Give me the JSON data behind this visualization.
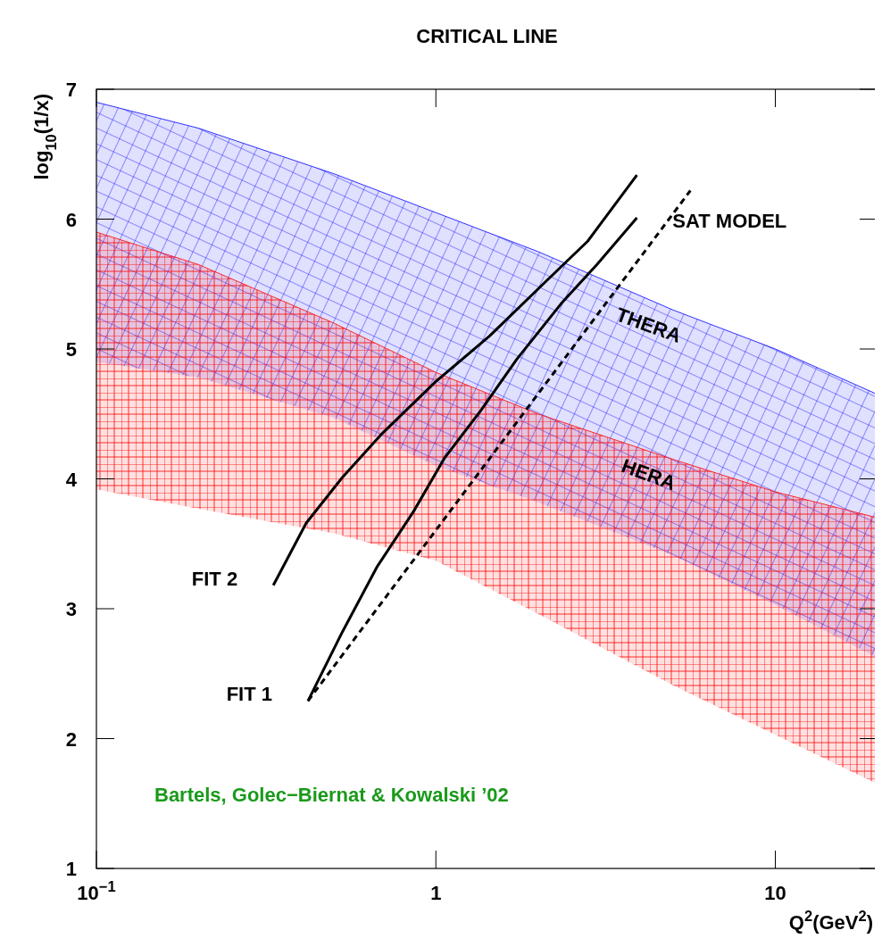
{
  "chart_data": {
    "type": "line",
    "title": "CRITICAL LINE",
    "xlabel": "Q$^{2}$(GeV$^{2}$)",
    "ylabel": "log$_{10}$(1/x)",
    "log": "x",
    "grid": false,
    "xlim": [
      0.1,
      20
    ],
    "ylim": [
      1,
      7
    ],
    "xticks": [
      {
        "value": 0.1,
        "label": "10$^{−1}$"
      },
      1,
      10
    ],
    "yticks": [
      1,
      2,
      3,
      4,
      5,
      6,
      7
    ],
    "series": [
      {
        "name": "THERA",
        "color": "#0000ff",
        "x": [
          0.1,
          0.2,
          0.5,
          1,
          2,
          5,
          10,
          20
        ],
        "values": [
          6.9,
          6.7,
          6.35,
          6.05,
          5.75,
          5.3,
          5.0,
          4.65
        ],
        "upper": [
          6.9,
          6.7,
          6.35,
          6.05,
          5.75,
          5.3,
          5.0,
          4.65
        ],
        "lower": [
          4.9,
          4.78,
          4.47,
          4.1,
          3.82,
          3.41,
          3.03,
          2.62
        ]
      },
      {
        "name": "HERA",
        "color": "#ff0000",
        "x": [
          0.1,
          0.2,
          0.5,
          1,
          2,
          5,
          10,
          20
        ],
        "values": [
          5.9,
          5.65,
          5.2,
          4.82,
          4.5,
          4.15,
          3.9,
          3.7
        ],
        "upper": [
          5.9,
          5.65,
          5.2,
          4.82,
          4.5,
          4.15,
          3.9,
          3.7
        ],
        "lower": [
          3.92,
          3.77,
          3.58,
          3.37,
          2.96,
          2.41,
          2.03,
          1.65
        ]
      },
      {
        "name": "FIT 2",
        "color": "#000000",
        "x": [
          0.332,
          0.415,
          0.53,
          0.695,
          1,
          1.44,
          2.07,
          2.8,
          3.91
        ],
        "values": [
          3.18,
          3.66,
          4.01,
          4.35,
          4.75,
          5.1,
          5.5,
          5.83,
          6.34
        ]
      },
      {
        "name": "FIT 1",
        "color": "#000000",
        "x": [
          0.42,
          0.53,
          0.67,
          0.86,
          1.06,
          1.36,
          1.73,
          2.34,
          2.98,
          3.91
        ],
        "values": [
          2.29,
          2.82,
          3.32,
          3.75,
          4.16,
          4.53,
          4.92,
          5.35,
          5.65,
          6.01
        ]
      },
      {
        "name": "SAT MODEL",
        "color": "#000000",
        "line_style": "dashed",
        "x": [
          0.42,
          5.62
        ],
        "values": [
          2.29,
          6.22
        ]
      }
    ],
    "annotations": [
      "Bartels, Golec−Biernat & Kowalski ’02"
    ]
  }
}
